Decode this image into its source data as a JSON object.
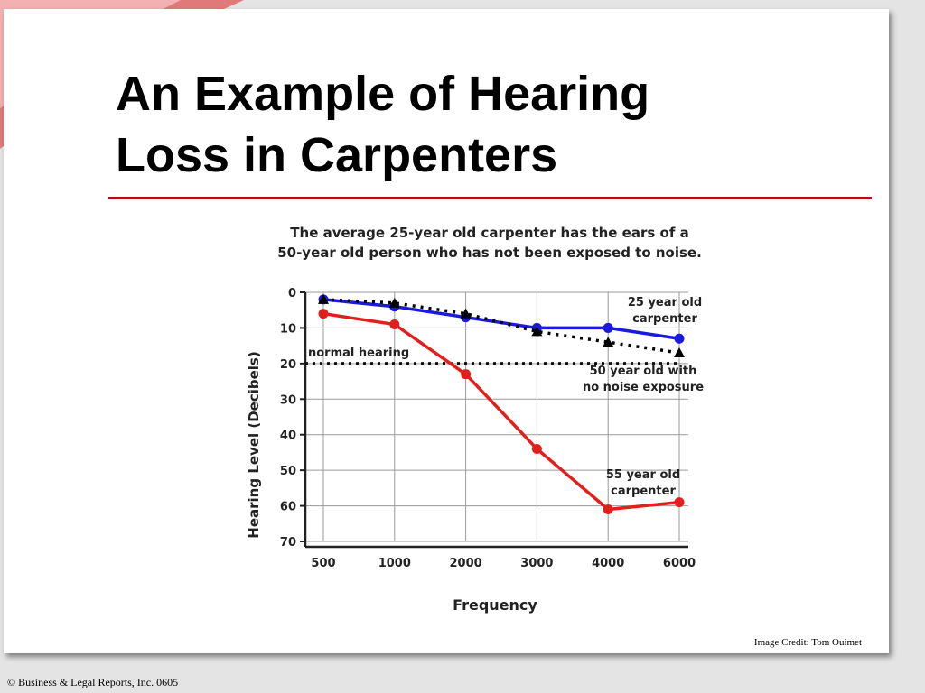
{
  "slide": {
    "title_line1": "An Example of Hearing",
    "title_line2": "Loss in Carpenters",
    "image_credit": "Image Credit: Tom Ouimet",
    "footer": "© Business & Legal Reports, Inc. 0605",
    "accent_color": "#b0101c"
  },
  "chart_data": {
    "type": "line",
    "title_line1": "The average 25-year old carpenter has the ears of a",
    "title_line2": "50-year old person who has not been exposed to noise.",
    "xlabel": "Frequency",
    "ylabel": "Hearing Level (Decibels)",
    "x": [
      "500",
      "1000",
      "2000",
      "3000",
      "4000",
      "6000"
    ],
    "ylim": [
      0,
      70
    ],
    "y_inverted": true,
    "yticks": [
      0,
      10,
      20,
      30,
      40,
      50,
      60,
      70
    ],
    "grid": true,
    "series": [
      {
        "name_line1": "25 year old",
        "name_line2": "carpenter",
        "color": "#1a1adc",
        "marker": "circle",
        "style": "solid",
        "values": [
          2,
          4,
          7,
          10,
          10,
          13
        ]
      },
      {
        "name_line1": "50 year old with",
        "name_line2": "no noise exposure",
        "color": "#000000",
        "marker": "triangle",
        "style": "dotted",
        "values": [
          2,
          3,
          6,
          11,
          14,
          17
        ]
      },
      {
        "name_line1": "55 year old",
        "name_line2": "carpenter",
        "color": "#e0201c",
        "marker": "circle",
        "style": "solid",
        "values": [
          6,
          9,
          23,
          44,
          61,
          59
        ]
      }
    ],
    "reference_line": {
      "label": "normal hearing",
      "value": 20
    }
  }
}
